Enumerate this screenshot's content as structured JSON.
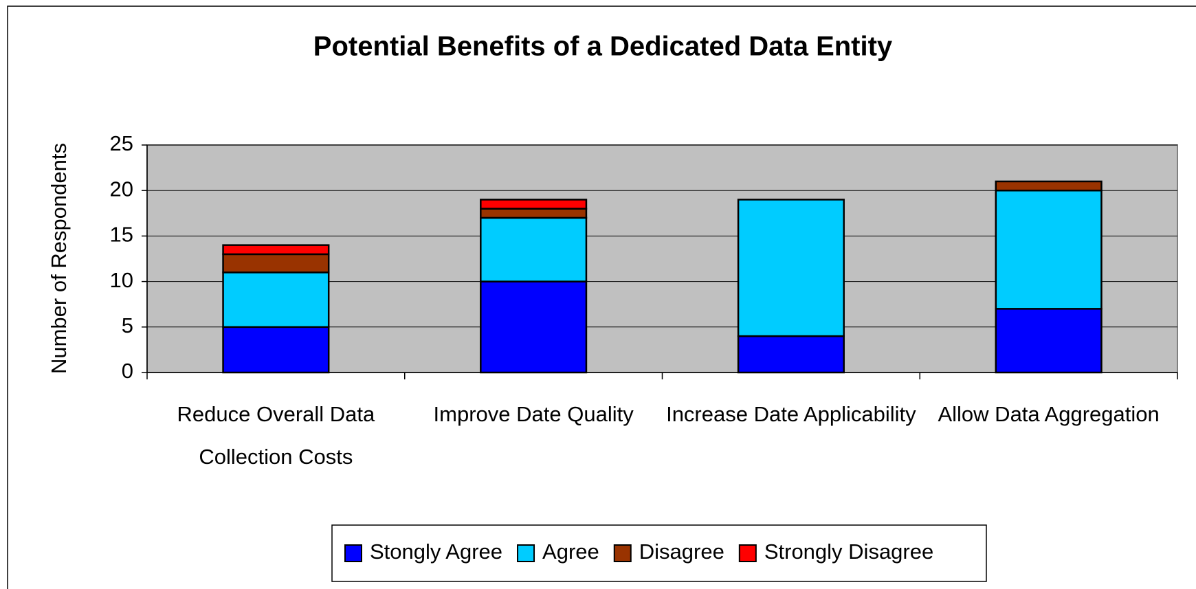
{
  "chart_data": {
    "type": "stacked_bar",
    "title": "Potential Benefits of a Dedicated Data Entity",
    "y_label": "Number of Respondents",
    "categories": [
      "Reduce Overall Data Collection Costs",
      "Improve Date Quality",
      "Increase Date Applicability",
      "Allow Data Aggregation"
    ],
    "series": [
      {
        "name": "Stongly Agree",
        "color": "#0000ff",
        "values": [
          5,
          10,
          4,
          7
        ]
      },
      {
        "name": "Agree",
        "color": "#00ccff",
        "values": [
          6,
          7,
          15,
          13
        ]
      },
      {
        "name": "Disagree",
        "color": "#993300",
        "values": [
          2,
          1,
          0,
          1
        ]
      },
      {
        "name": "Strongly Disagree",
        "color": "#ff0000",
        "values": [
          1,
          1,
          0,
          0
        ]
      }
    ],
    "ylim": [
      0,
      25
    ],
    "yticks": [
      0,
      5,
      10,
      15,
      20,
      25
    ],
    "grid": true,
    "legend": "bottom"
  }
}
